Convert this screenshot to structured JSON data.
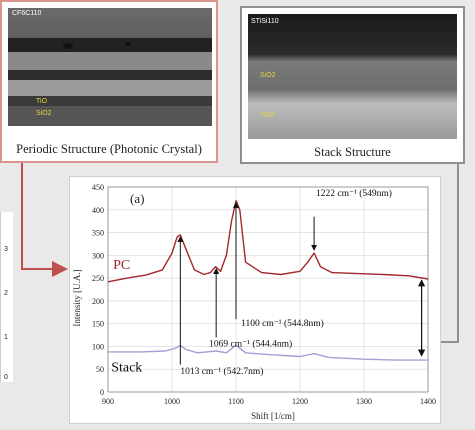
{
  "sem_left": {
    "id_label": "CF6C110",
    "layer_top": "TiO",
    "layer_bottom": "SiO2",
    "caption": "Periodic Structure (Photonic Crystal)"
  },
  "sem_right": {
    "id_label": "STiSi110",
    "layer_top": "SiO2",
    "layer_bottom": "TiO2",
    "caption": "Stack Structure"
  },
  "side_fragment_ticks": [
    "3",
    "2",
    "1",
    "0"
  ],
  "chart_data": {
    "type": "line",
    "panel_label": "(a)",
    "xlabel": "Shift [1/cm]",
    "ylabel": "Intensity [U.A.]",
    "xlim": [
      900,
      1400
    ],
    "ylim": [
      0,
      450
    ],
    "xticks": [
      900,
      1000,
      1100,
      1200,
      1300,
      1400
    ],
    "yticks": [
      0,
      50,
      100,
      150,
      200,
      250,
      300,
      350,
      400,
      450
    ],
    "grid": true,
    "series": [
      {
        "name": "PC",
        "color": "#a2282b",
        "x": [
          900,
          930,
          960,
          985,
          1000,
          1008,
          1013,
          1020,
          1035,
          1050,
          1060,
          1068,
          1076,
          1085,
          1093,
          1100,
          1106,
          1115,
          1140,
          1170,
          1200,
          1212,
          1222,
          1232,
          1250,
          1290,
          1330,
          1370,
          1400
        ],
        "y": [
          242,
          250,
          257,
          268,
          305,
          340,
          345,
          320,
          268,
          258,
          262,
          275,
          265,
          300,
          375,
          420,
          400,
          285,
          262,
          258,
          265,
          285,
          305,
          275,
          262,
          260,
          258,
          255,
          248
        ]
      },
      {
        "name": "Stack",
        "color": "#a99dd4",
        "x": [
          900,
          950,
          990,
          1005,
          1013,
          1022,
          1040,
          1069,
          1085,
          1100,
          1115,
          1150,
          1200,
          1222,
          1245,
          1300,
          1350,
          1400
        ],
        "y": [
          88,
          88,
          90,
          96,
          102,
          93,
          86,
          90,
          86,
          103,
          86,
          82,
          78,
          84,
          76,
          72,
          70,
          70
        ]
      }
    ],
    "annotations": [
      {
        "text": "1222 cm⁻¹ (549nm)",
        "x": 1222,
        "y": 305
      },
      {
        "text": "1100 cm⁻¹ (544.8nm)",
        "x": 1100,
        "y": 420
      },
      {
        "text": "1069 cm⁻¹ (544.4nm)",
        "x": 1069,
        "y": 275
      },
      {
        "text": "1013 cm⁻¹ (542.7nm)",
        "x": 1013,
        "y": 345
      }
    ]
  }
}
